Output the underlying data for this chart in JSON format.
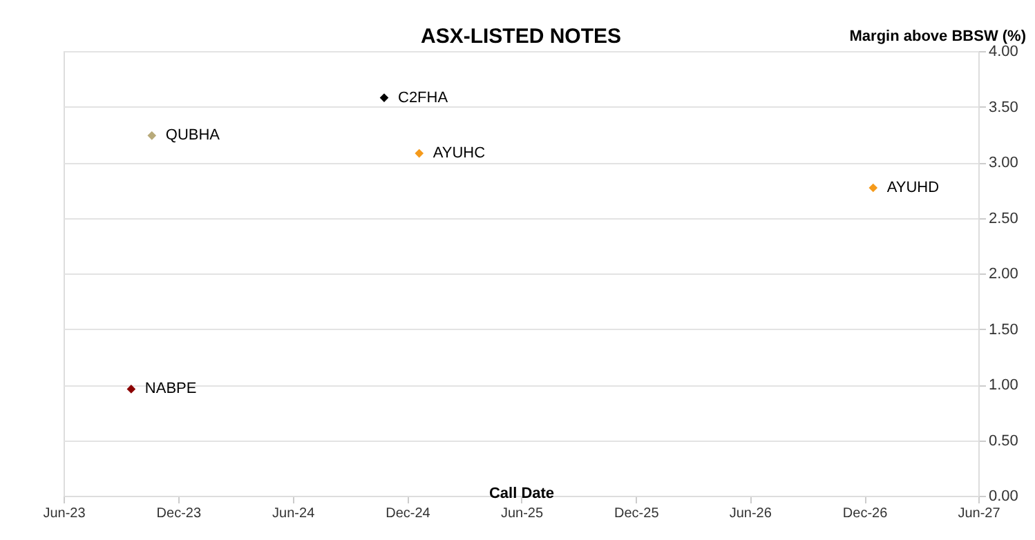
{
  "chart_data": {
    "type": "scatter",
    "title": "ASX-LISTED NOTES",
    "xlabel": "Call Date",
    "ylabel": "Margin above BBSW (%)",
    "series": [
      {
        "name": "NABPE",
        "color": "#8b0000",
        "x": [
          "2023-09-17"
        ],
        "values": [
          0.96
        ]
      },
      {
        "name": "QUBHA",
        "color": "#b8aa7a",
        "x": [
          "2023-10-20"
        ],
        "values": [
          3.24
        ]
      },
      {
        "name": "C2FHA",
        "color": "#000000",
        "x": [
          "2024-10-25"
        ],
        "values": [
          3.58
        ]
      },
      {
        "name": "AYUHC",
        "color": "#f59a1b",
        "x": [
          "2024-12-20"
        ],
        "values": [
          3.08
        ]
      },
      {
        "name": "AYUHD",
        "color": "#f59a1b",
        "x": [
          "2026-12-15"
        ],
        "values": [
          2.77
        ]
      }
    ],
    "xlim": [
      "2023-06-01",
      "2027-06-01"
    ],
    "xticks": [
      {
        "value": "2023-06-01",
        "label": "Jun-23"
      },
      {
        "value": "2023-12-01",
        "label": "Dec-23"
      },
      {
        "value": "2024-06-01",
        "label": "Jun-24"
      },
      {
        "value": "2024-12-01",
        "label": "Dec-24"
      },
      {
        "value": "2025-06-01",
        "label": "Jun-25"
      },
      {
        "value": "2025-12-01",
        "label": "Dec-25"
      },
      {
        "value": "2026-06-01",
        "label": "Jun-26"
      },
      {
        "value": "2026-12-01",
        "label": "Dec-26"
      },
      {
        "value": "2027-06-01",
        "label": "Jun-27"
      }
    ],
    "ylim": [
      0,
      4
    ],
    "yticks": [
      {
        "value": 0,
        "label": "0.00"
      },
      {
        "value": 0.5,
        "label": "0.50"
      },
      {
        "value": 1,
        "label": "1.00"
      },
      {
        "value": 1.5,
        "label": "1.50"
      },
      {
        "value": 2,
        "label": "2.00"
      },
      {
        "value": 2.5,
        "label": "2.50"
      },
      {
        "value": 3,
        "label": "3.00"
      },
      {
        "value": 3.5,
        "label": "3.50"
      },
      {
        "value": 4,
        "label": "4.00"
      }
    ],
    "grid": "y",
    "marker": "diamond",
    "legend": false
  }
}
